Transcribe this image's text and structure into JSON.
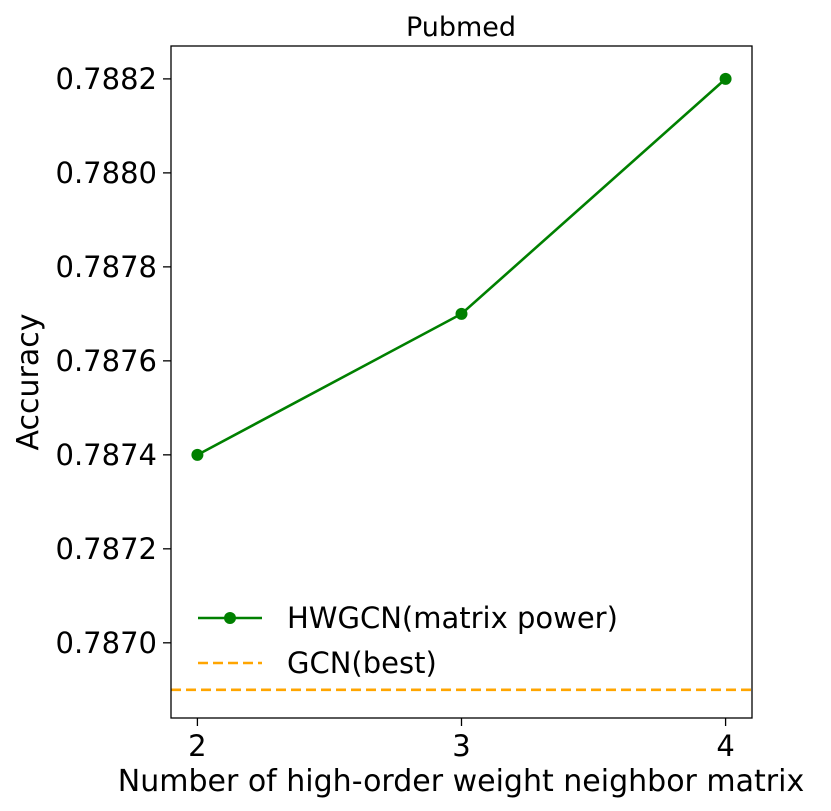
{
  "chart_data": {
    "type": "line",
    "title": "Pubmed",
    "xlabel": "Number of high-order weight neighbor matrix",
    "ylabel": "Accuracy",
    "x": [
      2,
      3,
      4
    ],
    "xticks": [
      2,
      3,
      4
    ],
    "xtick_labels": [
      "2",
      "3",
      "4"
    ],
    "yticks": [
      0.787,
      0.7872,
      0.7874,
      0.7876,
      0.7878,
      0.788,
      0.7882
    ],
    "ytick_labels": [
      "0.7870",
      "0.7872",
      "0.7874",
      "0.7876",
      "0.7878",
      "0.7880",
      "0.7882"
    ],
    "xlim": [
      1.9,
      4.1
    ],
    "ylim": [
      0.78684,
      0.78827
    ],
    "grid": false,
    "legend_position": "lower-left",
    "series": [
      {
        "name": "HWGCN(matrix power)",
        "values": [
          0.7874,
          0.7877,
          0.7882
        ],
        "color": "#008000",
        "style": "solid",
        "marker": "circle"
      },
      {
        "name": "GCN(best)",
        "type": "hline",
        "value": 0.7869,
        "color": "#FFA500",
        "style": "dashed"
      }
    ]
  }
}
